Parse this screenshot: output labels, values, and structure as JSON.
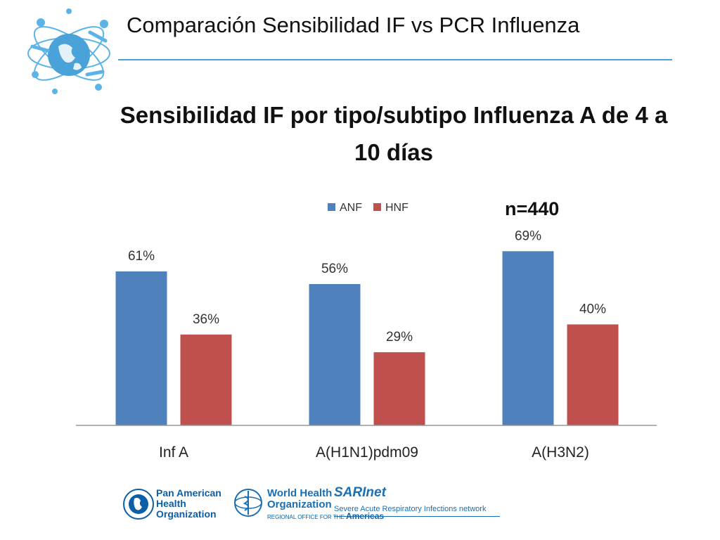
{
  "slide": {
    "title": "Comparación Sensibilidad IF vs PCR Influenza"
  },
  "chart_data": {
    "type": "bar",
    "title": "Sensibilidad IF por tipo/subtipo Influenza A de 4 a 10  días",
    "title_lines": [
      "Sensibilidad IF por tipo/subtipo Influenza A de 4 a",
      "10  días"
    ],
    "annotation": "n=440",
    "categories": [
      "Inf A",
      "A(H1N1)pdm09",
      "A(H3N2)"
    ],
    "series": [
      {
        "name": "ANF",
        "values": [
          61,
          56,
          69
        ],
        "labels": [
          "61%",
          "56%",
          "69%"
        ],
        "color": "#4f81bd"
      },
      {
        "name": "HNF",
        "values": [
          36,
          29,
          40
        ],
        "labels": [
          "36%",
          "29%",
          "40%"
        ],
        "color": "#c0504d"
      }
    ],
    "ylim": [
      0,
      100
    ],
    "unit": "%",
    "grid": false,
    "legend_position": "top"
  },
  "footer": {
    "paho_lines": [
      "Pan American",
      "Health",
      "Organization"
    ],
    "who_lines": [
      "World Health",
      "Organization"
    ],
    "who_regional": "REGIONAL OFFICE FOR THE",
    "who_region": "Americas",
    "sarinet_title": "SARInet",
    "sarinet_subtitle": "Severe Acute Respiratory Infections network",
    "colors": {
      "brand_blue": "#1a6fb3"
    }
  }
}
